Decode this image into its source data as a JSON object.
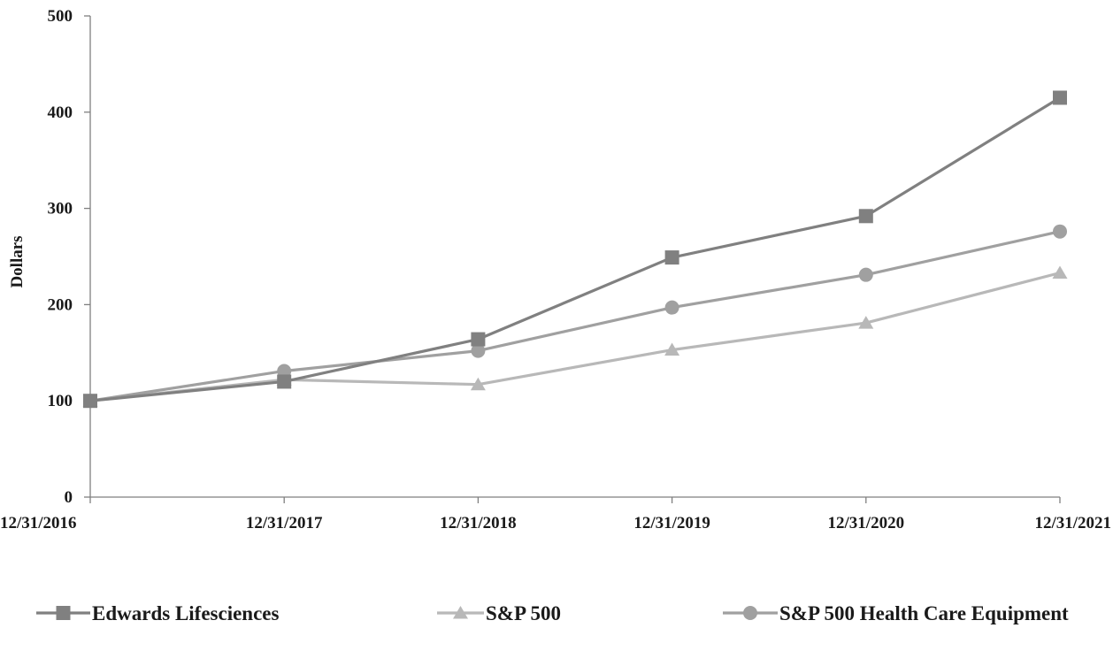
{
  "chart_data": {
    "type": "line",
    "ylabel": "Dollars",
    "xlabel": "",
    "ylim": [
      0,
      500
    ],
    "yticks": [
      0,
      100,
      200,
      300,
      400,
      500
    ],
    "categories": [
      "12/31/2016",
      "12/31/2017",
      "12/31/2018",
      "12/31/2019",
      "12/31/2020",
      "12/31/2021"
    ],
    "grid": false,
    "legend_position": "bottom",
    "series": [
      {
        "name": "Edwards Lifesciences",
        "marker": "square",
        "color": "#808080",
        "values": [
          100,
          120,
          164,
          249,
          292,
          415
        ]
      },
      {
        "name": "S&P 500",
        "marker": "triangle",
        "color": "#b8b8b8",
        "values": [
          100,
          122,
          117,
          153,
          181,
          233
        ]
      },
      {
        "name": "S&P 500 Health Care Equipment",
        "marker": "circle",
        "color": "#a0a0a0",
        "values": [
          100,
          131,
          152,
          197,
          231,
          276
        ]
      }
    ]
  }
}
